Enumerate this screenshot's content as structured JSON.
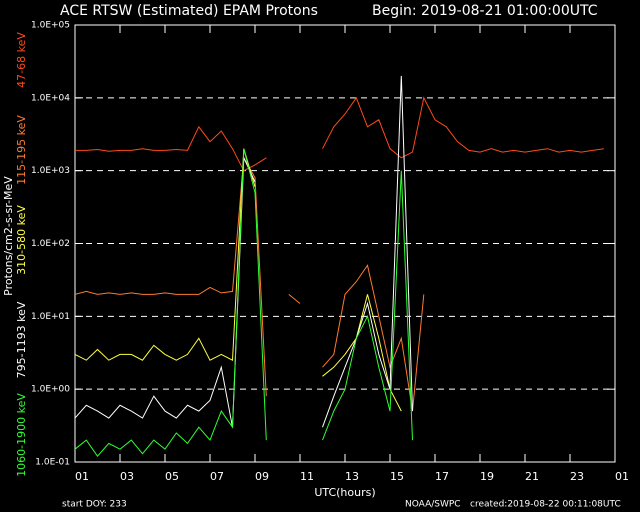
{
  "chart_data": {
    "type": "line",
    "title": "ACE RTSW (Estimated) EPAM Protons",
    "subtitle": "Begin: 2019-08-21 01:00:00UTC",
    "x_label": "UTC(hours)",
    "y_label": "Protons/cm2-s-sr-MeV",
    "footer_left": "start DOY:  233",
    "footer_center": "NOAA/SWPC",
    "footer_right": "created:2019-08-22 00:11:08UTC",
    "log_y": true,
    "grid": true,
    "xlim": [
      0,
      24
    ],
    "xticks": [
      {
        "value": 0,
        "label": "01"
      },
      {
        "value": 2,
        "label": "03"
      },
      {
        "value": 4,
        "label": "05"
      },
      {
        "value": 6,
        "label": "07"
      },
      {
        "value": 8,
        "label": "09"
      },
      {
        "value": 10,
        "label": "11"
      },
      {
        "value": 12,
        "label": "13"
      },
      {
        "value": 14,
        "label": "15"
      },
      {
        "value": 16,
        "label": "17"
      },
      {
        "value": 18,
        "label": "19"
      },
      {
        "value": 20,
        "label": "21"
      },
      {
        "value": 22,
        "label": "23"
      },
      {
        "value": 24,
        "label": "01"
      }
    ],
    "ylim": [
      0.1,
      100000
    ],
    "yticks": [
      {
        "value": 0.1,
        "label": "1.0E-01"
      },
      {
        "value": 1,
        "label": "1.0E+00"
      },
      {
        "value": 10,
        "label": "1.0E+01"
      },
      {
        "value": 100,
        "label": "1.0E+02"
      },
      {
        "value": 1000,
        "label": "1.0E+03"
      },
      {
        "value": 10000,
        "label": "1.0E+04"
      },
      {
        "value": 100000,
        "label": "1.0E+05"
      }
    ],
    "x": [
      0,
      0.5,
      1,
      1.5,
      2,
      2.5,
      3,
      3.5,
      4,
      4.5,
      5,
      5.5,
      6,
      6.5,
      7,
      7.5,
      8,
      8.5,
      9,
      9.5,
      10,
      10.5,
      11,
      11.5,
      12,
      12.5,
      13,
      13.5,
      14,
      14.5,
      15,
      15.5,
      16,
      16.5,
      17,
      17.5,
      18,
      18.5,
      19,
      19.5,
      20,
      20.5,
      21,
      21.5,
      22,
      22.5,
      23,
      23.5,
      24
    ],
    "series": [
      {
        "name": "47-68 keV",
        "color": "#ff4a1a",
        "values": [
          1900,
          1900,
          1950,
          1850,
          1900,
          1900,
          2000,
          1900,
          1900,
          1950,
          1900,
          4000,
          2500,
          3500,
          2000,
          1000,
          1200,
          1500,
          null,
          null,
          null,
          null,
          2000,
          4000,
          6000,
          10000,
          4000,
          5000,
          2000,
          1500,
          1800,
          10000,
          5000,
          4000,
          2500,
          1900,
          1800,
          2000,
          1800,
          1900,
          1800,
          1900,
          2000,
          1800,
          1900,
          1800,
          1900,
          2000,
          null
        ]
      },
      {
        "name": "115-195 keV",
        "color": "#ff7a30",
        "values": [
          20,
          22,
          20,
          21,
          20,
          21,
          20,
          20,
          21,
          20,
          20,
          20,
          25,
          21,
          22,
          1500,
          800,
          0.8,
          null,
          20,
          15,
          null,
          2,
          3,
          20,
          30,
          50,
          10,
          2,
          5,
          0.5,
          20,
          null,
          null,
          null,
          null,
          null,
          null,
          null,
          null,
          null,
          null,
          null,
          null,
          null,
          null,
          null,
          null,
          null
        ]
      },
      {
        "name": "310-580 keV",
        "color": "#ffff40",
        "values": [
          3,
          2.5,
          3.5,
          2.5,
          3,
          3,
          2.5,
          4,
          3,
          2.5,
          3,
          5,
          2.5,
          3,
          2.5,
          2000,
          600,
          null,
          null,
          null,
          null,
          null,
          1.5,
          2,
          3,
          5,
          20,
          5,
          1,
          0.5,
          null,
          null,
          null,
          null,
          null,
          null,
          null,
          null,
          null,
          null,
          null,
          null,
          null,
          null,
          null,
          null,
          null,
          null,
          null
        ]
      },
      {
        "name": "795-1193 keV",
        "color": "#ffffff",
        "values": [
          0.4,
          0.6,
          0.5,
          0.4,
          0.6,
          0.5,
          0.4,
          0.8,
          0.5,
          0.4,
          0.6,
          0.5,
          0.7,
          2,
          0.3,
          1500,
          700,
          null,
          null,
          null,
          null,
          null,
          0.3,
          0.8,
          2,
          5,
          15,
          3,
          1,
          20000,
          0.5,
          null,
          null,
          null,
          null,
          null,
          null,
          null,
          null,
          null,
          null,
          null,
          null,
          null,
          null,
          null,
          null,
          null,
          null
        ]
      },
      {
        "name": "1060-1900 keV",
        "color": "#30ff30",
        "values": [
          0.15,
          0.2,
          0.12,
          0.18,
          0.15,
          0.2,
          0.13,
          0.2,
          0.15,
          0.25,
          0.18,
          0.3,
          0.2,
          0.5,
          0.3,
          2000,
          500,
          0.2,
          null,
          null,
          null,
          null,
          0.2,
          0.5,
          1,
          5,
          10,
          2,
          0.5,
          1000,
          0.2,
          null,
          null,
          null,
          null,
          null,
          null,
          null,
          null,
          null,
          null,
          null,
          null,
          null,
          null,
          null,
          null,
          null,
          null
        ]
      }
    ]
  }
}
